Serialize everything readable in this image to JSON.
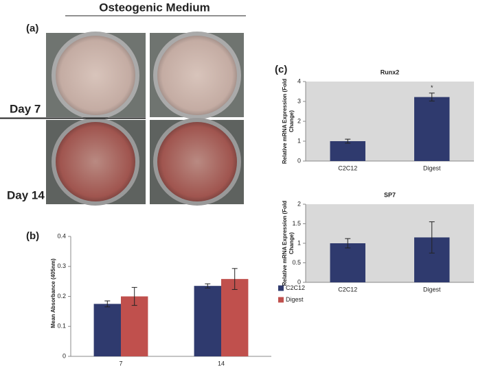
{
  "figure": {
    "header": "Osteogenic Medium",
    "panel_a": "(a)",
    "panel_b": "(b)",
    "panel_c": "(c)",
    "rows": [
      "Day 7",
      "Day 14"
    ]
  },
  "chart_data": [
    {
      "type": "bar",
      "categories": [
        "7",
        "14"
      ],
      "ylabel": "Mean Absorbance (405nm)",
      "ylim": [
        0,
        0.4
      ],
      "yticks": [
        0,
        0.1,
        0.2,
        0.3,
        0.4
      ],
      "legend": "right",
      "series": [
        {
          "name": "C2C12",
          "color": "#2f3a6e",
          "values": [
            0.175,
            0.235
          ],
          "errors": [
            0.01,
            0.007
          ]
        },
        {
          "name": "Digest",
          "color": "#c0504d",
          "values": [
            0.2,
            0.258
          ],
          "errors": [
            0.03,
            0.035
          ]
        }
      ]
    },
    {
      "type": "bar",
      "title": "Runx2",
      "categories": [
        "C2C12",
        "Digest"
      ],
      "ylabel": "Relative mRNA Expression (Fold Change)",
      "ylim": [
        0,
        4
      ],
      "yticks": [
        0,
        1,
        2,
        3,
        4
      ],
      "color": "#2f3a6e",
      "values": [
        1,
        3.22
      ],
      "errors": [
        0.1,
        0.2
      ],
      "annotations": [
        {
          "text": "*",
          "x": "Digest"
        }
      ]
    },
    {
      "type": "bar",
      "title": "SP7",
      "categories": [
        "C2C12",
        "Digest"
      ],
      "ylabel": "Relative mRNA Expression (Fold Change)",
      "ylim": [
        0,
        2
      ],
      "yticks": [
        0,
        0.5,
        1,
        1.5,
        2
      ],
      "color": "#2f3a6e",
      "values": [
        1,
        1.15
      ],
      "errors": [
        0.12,
        0.4
      ]
    }
  ]
}
